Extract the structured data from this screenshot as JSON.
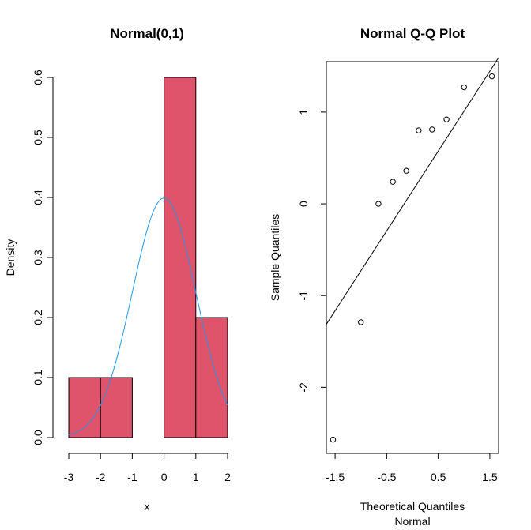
{
  "chart_data": [
    {
      "type": "bar",
      "subtype": "histogram-with-density-curve",
      "title": "Normal(0,1)",
      "xlabel": "x",
      "ylabel": "Density",
      "xlim": [
        -3,
        2
      ],
      "ylim": [
        0,
        0.6
      ],
      "xticks": [
        "-3",
        "-2",
        "-1",
        "0",
        "1",
        "2"
      ],
      "yticks": [
        "0.0",
        "0.1",
        "0.2",
        "0.3",
        "0.4",
        "0.5",
        "0.6"
      ],
      "bins": [
        {
          "from": -3,
          "to": -2,
          "density": 0.1
        },
        {
          "from": -2,
          "to": -1,
          "density": 0.1
        },
        {
          "from": -1,
          "to": 0,
          "density": 0.0
        },
        {
          "from": 0,
          "to": 1,
          "density": 0.6
        },
        {
          "from": 1,
          "to": 2,
          "density": 0.2
        }
      ],
      "bar_color": "#DF536B",
      "curve": {
        "name": "dnorm(x, 0, 1)",
        "color": "#2297E6",
        "mean": 0,
        "sd": 1
      }
    },
    {
      "type": "scatter",
      "subtype": "qq-plot",
      "title": "Normal Q-Q Plot",
      "xlabel": "Theoretical Quantiles",
      "xlabel2": "Normal",
      "ylabel": "Sample Quantiles",
      "xlim": [
        -1.67,
        1.67
      ],
      "ylim": [
        -2.72,
        1.55
      ],
      "xticks": [
        "-1.5",
        "-0.5",
        "0.5",
        "1.5"
      ],
      "yticks": [
        "-2",
        "-1",
        "0",
        "1"
      ],
      "points": [
        {
          "x": -1.54,
          "y": -2.57
        },
        {
          "x": -1.0,
          "y": -1.29
        },
        {
          "x": -0.66,
          "y": 0.0
        },
        {
          "x": -0.38,
          "y": 0.24
        },
        {
          "x": -0.12,
          "y": 0.36
        },
        {
          "x": 0.12,
          "y": 0.8
        },
        {
          "x": 0.38,
          "y": 0.81
        },
        {
          "x": 0.66,
          "y": 0.92
        },
        {
          "x": 1.0,
          "y": 1.27
        },
        {
          "x": 1.54,
          "y": 1.39
        }
      ],
      "reference_line": {
        "intercept": 0.14,
        "slope": 0.87
      }
    }
  ]
}
